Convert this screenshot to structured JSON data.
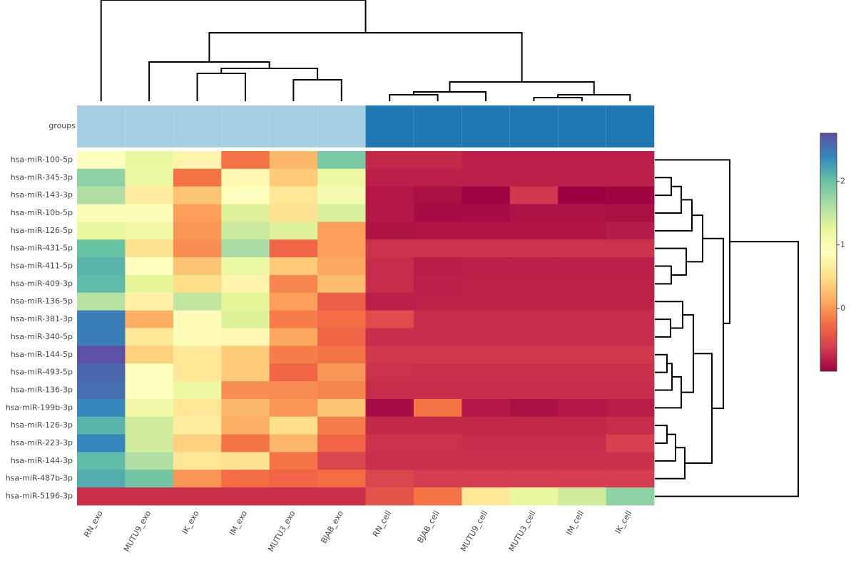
{
  "chart_data": {
    "type": "heatmap",
    "group_label": "groups",
    "group_colors": [
      "#a6cee3",
      "#a6cee3",
      "#a6cee3",
      "#a6cee3",
      "#a6cee3",
      "#a6cee3",
      "#1f78b4",
      "#1f78b4",
      "#1f78b4",
      "#1f78b4",
      "#1f78b4",
      "#1f78b4"
    ],
    "x": [
      "RN_exo",
      "MUTU9_exo",
      "IK_exo",
      "IM_exo",
      "MUTU3_exo",
      "BJAB_exo",
      "RN_cell",
      "BJAB_cell",
      "MUTU9_cell",
      "MUTU3_cell",
      "IM_cell",
      "IK_cell"
    ],
    "y": [
      "hsa-miR-100-5p",
      "hsa-miR-345-3p",
      "hsa-miR-143-3p",
      "hsa-miR-10b-5p",
      "hsa-miR-126-5p",
      "hsa-miR-431-5p",
      "hsa-miR-411-5p",
      "hsa-miR-409-3p",
      "hsa-miR-136-5p",
      "hsa-miR-381-3p",
      "hsa-miR-340-5p",
      "hsa-miR-144-5p",
      "hsa-miR-493-5p",
      "hsa-miR-136-3p",
      "hsa-miR-199b-3p",
      "hsa-miR-126-3p",
      "hsa-miR-223-3p",
      "hsa-miR-144-3p",
      "hsa-miR-487b-3p",
      "hsa-miR-5196-3p"
    ],
    "z": [
      [
        0.9,
        1.2,
        0.75,
        -0.2,
        0.2,
        1.9,
        -0.75,
        -0.75,
        -0.8,
        -0.8,
        -0.8,
        -0.8
      ],
      [
        1.8,
        1.15,
        -0.2,
        0.8,
        0.35,
        1.15,
        -0.8,
        -0.8,
        -0.8,
        -0.8,
        -0.8,
        -0.8
      ],
      [
        1.6,
        0.65,
        0.3,
        0.9,
        0.6,
        1.05,
        -0.85,
        -0.9,
        -0.97,
        -0.65,
        -0.99,
        -0.97
      ],
      [
        0.95,
        0.95,
        0.05,
        1.3,
        0.55,
        1.35,
        -0.85,
        -0.93,
        -0.92,
        -0.88,
        -0.88,
        -0.9
      ],
      [
        1.2,
        1.1,
        0.0,
        1.45,
        1.3,
        0.05,
        -0.88,
        -0.87,
        -0.87,
        -0.86,
        -0.86,
        -0.83
      ],
      [
        2.0,
        0.55,
        -0.05,
        1.65,
        -0.3,
        0.05,
        -0.68,
        -0.68,
        -0.68,
        -0.68,
        -0.68,
        -0.68
      ],
      [
        2.1,
        0.9,
        0.3,
        1.15,
        0.35,
        0.1,
        -0.72,
        -0.82,
        -0.8,
        -0.8,
        -0.8,
        -0.8
      ],
      [
        2.05,
        1.25,
        0.5,
        0.75,
        -0.1,
        0.25,
        -0.72,
        -0.8,
        -0.78,
        -0.78,
        -0.78,
        -0.78
      ],
      [
        1.55,
        0.7,
        1.5,
        1.25,
        0.05,
        -0.35,
        -0.8,
        -0.78,
        -0.78,
        -0.78,
        -0.78,
        -0.78
      ],
      [
        2.45,
        0.15,
        0.85,
        1.3,
        -0.15,
        -0.25,
        -0.5,
        -0.72,
        -0.72,
        -0.72,
        -0.72,
        -0.72
      ],
      [
        2.45,
        0.6,
        0.85,
        0.8,
        0.1,
        -0.3,
        -0.72,
        -0.72,
        -0.72,
        -0.72,
        -0.72,
        -0.72
      ],
      [
        2.75,
        0.4,
        0.6,
        0.35,
        -0.15,
        -0.2,
        -0.65,
        -0.65,
        -0.65,
        -0.65,
        -0.65,
        -0.65
      ],
      [
        2.6,
        0.9,
        0.6,
        0.35,
        -0.3,
        0.0,
        -0.68,
        -0.7,
        -0.7,
        -0.7,
        -0.7,
        -0.7
      ],
      [
        2.55,
        0.9,
        1.15,
        -0.05,
        -0.05,
        -0.1,
        -0.72,
        -0.72,
        -0.72,
        -0.72,
        -0.72,
        -0.72
      ],
      [
        2.4,
        1.1,
        0.6,
        0.2,
        0.0,
        0.3,
        -0.92,
        -0.2,
        -0.85,
        -0.9,
        -0.85,
        -0.82
      ],
      [
        2.1,
        1.4,
        0.65,
        0.15,
        0.5,
        -0.15,
        -0.75,
        -0.75,
        -0.75,
        -0.75,
        -0.75,
        -0.72
      ],
      [
        2.4,
        1.4,
        0.4,
        -0.2,
        0.2,
        -0.3,
        -0.68,
        -0.68,
        -0.72,
        -0.72,
        -0.72,
        -0.6
      ],
      [
        2.05,
        1.6,
        0.6,
        0.55,
        -0.2,
        -0.55,
        -0.7,
        -0.7,
        -0.7,
        -0.7,
        -0.7,
        -0.7
      ],
      [
        2.15,
        1.95,
        0.0,
        -0.25,
        -0.3,
        -0.25,
        -0.55,
        -0.62,
        -0.62,
        -0.62,
        -0.62,
        -0.62
      ],
      [
        -0.7,
        -0.7,
        -0.7,
        -0.7,
        -0.7,
        -0.7,
        -0.45,
        -0.2,
        0.6,
        1.2,
        1.4,
        1.8
      ]
    ],
    "zlim": [
      -0.99,
      2.76
    ],
    "zticks": [
      0,
      1,
      2
    ],
    "colorscale": [
      "#9e0142",
      "#d53e4f",
      "#f46d43",
      "#fdae61",
      "#fee08b",
      "#ffffbf",
      "#e6f598",
      "#abdda4",
      "#66c2a5",
      "#3288bd",
      "#5e4fa2"
    ]
  }
}
